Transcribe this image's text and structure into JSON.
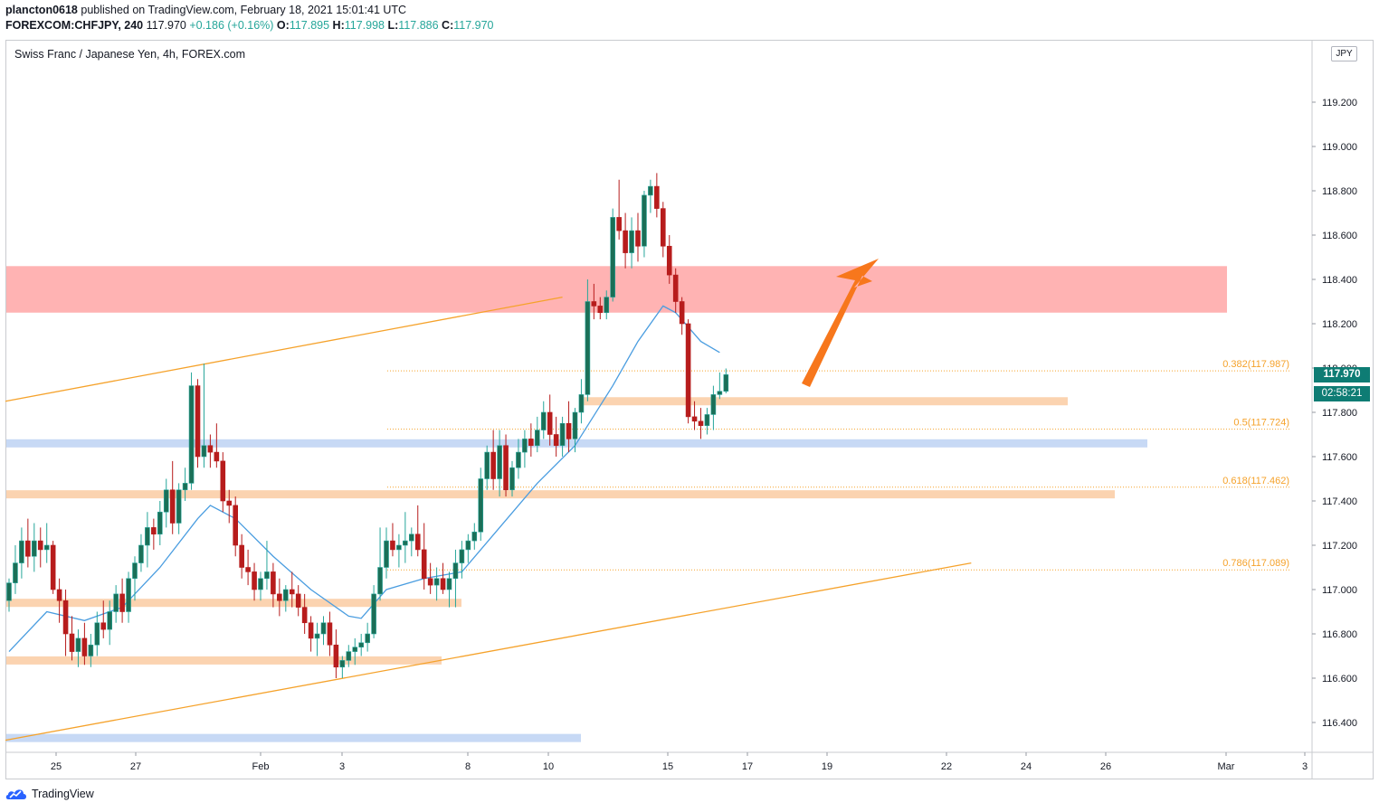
{
  "header": {
    "user": "plancton0618",
    "published_text": " published on TradingView.com, February 18, 2021 15:01:41 UTC",
    "symbol": "FOREXCOM:CHFJPY, 240",
    "last": " 117.970 ",
    "change": "+0.186 (+0.16%)",
    "o_label": " O:",
    "o_value": "117.895",
    "h_label": " H:",
    "h_value": "117.998",
    "l_label": " L:",
    "l_value": "117.886",
    "c_label": " C:",
    "c_value": "117.970"
  },
  "chart_title": "Swiss Franc / Japanese Yen, 4h, FOREX.com",
  "currency_badge": "JPY",
  "last_price_tag": "117.970",
  "countdown_tag": "02:58:21",
  "footer_brand": "TradingView",
  "colors": {
    "up": "#26a69a",
    "up_body": "#1b6f57",
    "down": "#b71c1c",
    "ma": "#4a9de0",
    "resistance_zone": "#ffb3b3",
    "support_orange": "#fbd3b0",
    "support_blue": "#c7d9f5",
    "trendline": "#f5a22b",
    "arrow": "#f7771c",
    "fib": "#f5a22b",
    "price_tag": "#0e7c74"
  },
  "chart_data": {
    "type": "candlestick",
    "symbol": "CHFJPY",
    "timeframe": "4h",
    "ylim": [
      116.28,
      119.55
    ],
    "y_ticks": [
      "116.400",
      "116.600",
      "116.800",
      "117.000",
      "117.200",
      "117.400",
      "117.600",
      "117.800",
      "118.000",
      "118.200",
      "118.400",
      "118.600",
      "118.800",
      "119.000",
      "119.200"
    ],
    "x_ticks": [
      "25",
      "27",
      "Feb",
      "3",
      "8",
      "10",
      "15",
      "17",
      "19",
      "22",
      "24",
      "26",
      "Mar",
      "3"
    ],
    "fib_levels": [
      {
        "label": "0.382(117.987)",
        "value": 117.987
      },
      {
        "label": "0.5(117.724)",
        "value": 117.724
      },
      {
        "label": "0.618(117.462)",
        "value": 117.462
      },
      {
        "label": "0.786(117.089)",
        "value": 117.089
      }
    ],
    "zones": [
      {
        "kind": "resistance",
        "from": 118.25,
        "to": 118.46
      },
      {
        "kind": "support",
        "level": 117.85
      },
      {
        "kind": "support",
        "level": 117.66
      },
      {
        "kind": "support",
        "level": 117.43
      },
      {
        "kind": "support",
        "level": 116.94
      },
      {
        "kind": "support",
        "level": 116.68
      },
      {
        "kind": "support",
        "level": 116.33
      }
    ],
    "ohlc": [
      [
        116.95,
        117.05,
        116.9,
        117.03
      ],
      [
        117.03,
        117.2,
        116.98,
        117.12
      ],
      [
        117.12,
        117.28,
        117.05,
        117.22
      ],
      [
        117.22,
        117.32,
        117.1,
        117.15
      ],
      [
        117.15,
        117.3,
        117.08,
        117.22
      ],
      [
        117.22,
        117.28,
        117.1,
        117.18
      ],
      [
        117.18,
        117.3,
        117.12,
        117.2
      ],
      [
        117.2,
        117.22,
        116.98,
        117.0
      ],
      [
        117.0,
        117.05,
        116.85,
        116.95
      ],
      [
        116.95,
        117.0,
        116.7,
        116.8
      ],
      [
        116.8,
        116.88,
        116.68,
        116.72
      ],
      [
        116.72,
        116.82,
        116.65,
        116.78
      ],
      [
        116.78,
        116.85,
        116.66,
        116.7
      ],
      [
        116.7,
        116.8,
        116.65,
        116.75
      ],
      [
        116.75,
        116.9,
        116.7,
        116.85
      ],
      [
        116.85,
        116.95,
        116.78,
        116.82
      ],
      [
        116.82,
        116.95,
        116.75,
        116.9
      ],
      [
        116.9,
        117.02,
        116.85,
        116.98
      ],
      [
        116.98,
        117.05,
        116.85,
        116.9
      ],
      [
        116.9,
        117.08,
        116.85,
        117.05
      ],
      [
        117.05,
        117.15,
        116.95,
        117.12
      ],
      [
        117.12,
        117.25,
        117.08,
        117.2
      ],
      [
        117.2,
        117.35,
        117.1,
        117.28
      ],
      [
        117.28,
        117.32,
        117.18,
        117.25
      ],
      [
        117.25,
        117.4,
        117.2,
        117.35
      ],
      [
        117.35,
        117.5,
        117.28,
        117.45
      ],
      [
        117.45,
        117.58,
        117.25,
        117.3
      ],
      [
        117.3,
        117.48,
        117.25,
        117.45
      ],
      [
        117.45,
        117.55,
        117.4,
        117.48
      ],
      [
        117.48,
        117.98,
        117.45,
        117.92
      ],
      [
        117.92,
        117.95,
        117.55,
        117.6
      ],
      [
        117.6,
        118.02,
        117.55,
        117.65
      ],
      [
        117.65,
        117.7,
        117.55,
        117.62
      ],
      [
        117.62,
        117.75,
        117.55,
        117.58
      ],
      [
        117.58,
        117.62,
        117.35,
        117.4
      ],
      [
        117.4,
        117.45,
        117.3,
        117.38
      ],
      [
        117.38,
        117.42,
        117.15,
        117.2
      ],
      [
        117.2,
        117.25,
        117.05,
        117.1
      ],
      [
        117.1,
        117.18,
        117.02,
        117.08
      ],
      [
        117.08,
        117.12,
        116.95,
        117.0
      ],
      [
        117.0,
        117.08,
        116.95,
        117.05
      ],
      [
        117.05,
        117.22,
        117.0,
        117.08
      ],
      [
        117.08,
        117.12,
        116.92,
        116.98
      ],
      [
        116.98,
        117.05,
        116.88,
        116.95
      ],
      [
        116.95,
        117.02,
        116.9,
        117.0
      ],
      [
        117.0,
        117.08,
        116.92,
        116.98
      ],
      [
        116.98,
        117.02,
        116.88,
        116.92
      ],
      [
        116.92,
        116.98,
        116.8,
        116.85
      ],
      [
        116.85,
        116.88,
        116.72,
        116.78
      ],
      [
        116.78,
        116.85,
        116.7,
        116.8
      ],
      [
        116.8,
        116.88,
        116.75,
        116.85
      ],
      [
        116.85,
        116.9,
        116.7,
        116.75
      ],
      [
        116.75,
        116.82,
        116.6,
        116.65
      ],
      [
        116.65,
        116.7,
        116.6,
        116.68
      ],
      [
        116.68,
        116.75,
        116.65,
        116.72
      ],
      [
        116.72,
        116.78,
        116.66,
        116.74
      ],
      [
        116.74,
        116.8,
        116.7,
        116.76
      ],
      [
        116.76,
        116.85,
        116.72,
        116.8
      ],
      [
        116.8,
        117.02,
        116.78,
        116.98
      ],
      [
        116.98,
        117.28,
        116.95,
        117.1
      ],
      [
        117.1,
        117.28,
        117.05,
        117.22
      ],
      [
        117.22,
        117.3,
        117.15,
        117.18
      ],
      [
        117.18,
        117.25,
        117.1,
        117.2
      ],
      [
        117.2,
        117.35,
        117.12,
        117.22
      ],
      [
        117.22,
        117.28,
        117.15,
        117.25
      ],
      [
        117.25,
        117.38,
        117.15,
        117.18
      ],
      [
        117.18,
        117.3,
        117.0,
        117.05
      ],
      [
        117.05,
        117.12,
        116.98,
        117.02
      ],
      [
        117.02,
        117.1,
        116.95,
        117.05
      ],
      [
        117.05,
        117.12,
        116.98,
        117.0
      ],
      [
        117.0,
        117.08,
        116.92,
        117.05
      ],
      [
        117.05,
        117.18,
        116.92,
        117.12
      ],
      [
        117.12,
        117.22,
        117.05,
        117.18
      ],
      [
        117.18,
        117.25,
        117.12,
        117.22
      ],
      [
        117.22,
        117.3,
        117.18,
        117.26
      ],
      [
        117.26,
        117.55,
        117.22,
        117.5
      ],
      [
        117.5,
        117.65,
        117.45,
        117.62
      ],
      [
        117.62,
        117.72,
        117.45,
        117.5
      ],
      [
        117.5,
        117.72,
        117.42,
        117.65
      ],
      [
        117.65,
        117.7,
        117.42,
        117.45
      ],
      [
        117.45,
        117.58,
        117.42,
        117.55
      ],
      [
        117.55,
        117.68,
        117.5,
        117.62
      ],
      [
        117.62,
        117.72,
        117.55,
        117.68
      ],
      [
        117.68,
        117.75,
        117.6,
        117.65
      ],
      [
        117.65,
        117.78,
        117.62,
        117.72
      ],
      [
        117.72,
        117.85,
        117.68,
        117.8
      ],
      [
        117.8,
        117.88,
        117.65,
        117.7
      ],
      [
        117.7,
        117.78,
        117.6,
        117.65
      ],
      [
        117.65,
        117.78,
        117.6,
        117.75
      ],
      [
        117.75,
        117.85,
        117.62,
        117.68
      ],
      [
        117.68,
        117.82,
        117.62,
        117.8
      ],
      [
        117.8,
        117.95,
        117.75,
        117.88
      ],
      [
        117.88,
        118.4,
        117.85,
        118.3
      ],
      [
        118.3,
        118.38,
        118.22,
        118.28
      ],
      [
        118.28,
        118.32,
        118.22,
        118.25
      ],
      [
        118.25,
        118.35,
        118.22,
        118.32
      ],
      [
        118.32,
        118.72,
        118.3,
        118.68
      ],
      [
        118.68,
        118.85,
        118.58,
        118.62
      ],
      [
        118.62,
        118.7,
        118.45,
        118.52
      ],
      [
        118.52,
        118.68,
        118.45,
        118.62
      ],
      [
        118.62,
        118.7,
        118.48,
        118.55
      ],
      [
        118.55,
        118.8,
        118.5,
        118.78
      ],
      [
        118.78,
        118.85,
        118.7,
        118.82
      ],
      [
        118.82,
        118.88,
        118.68,
        118.72
      ],
      [
        118.72,
        118.75,
        118.5,
        118.55
      ],
      [
        118.55,
        118.6,
        118.38,
        118.42
      ],
      [
        118.42,
        118.45,
        118.25,
        118.3
      ],
      [
        118.3,
        118.32,
        118.15,
        118.2
      ],
      [
        118.2,
        118.22,
        117.75,
        117.78
      ],
      [
        117.78,
        117.85,
        117.72,
        117.76
      ],
      [
        117.76,
        117.82,
        117.68,
        117.74
      ],
      [
        117.74,
        117.82,
        117.7,
        117.79
      ],
      [
        117.79,
        117.92,
        117.72,
        117.88
      ],
      [
        117.88,
        117.98,
        117.86,
        117.895
      ],
      [
        117.895,
        117.998,
        117.886,
        117.97
      ]
    ],
    "ma": [
      [
        0,
        116.72
      ],
      [
        6,
        116.9
      ],
      [
        12,
        116.86
      ],
      [
        18,
        116.92
      ],
      [
        24,
        117.1
      ],
      [
        30,
        117.32
      ],
      [
        32,
        117.38
      ],
      [
        36,
        117.32
      ],
      [
        42,
        117.15
      ],
      [
        48,
        117.0
      ],
      [
        54,
        116.88
      ],
      [
        56,
        116.87
      ],
      [
        60,
        117.0
      ],
      [
        66,
        117.05
      ],
      [
        72,
        117.08
      ],
      [
        78,
        117.28
      ],
      [
        84,
        117.48
      ],
      [
        90,
        117.65
      ],
      [
        96,
        117.92
      ],
      [
        100,
        118.12
      ],
      [
        104,
        118.28
      ],
      [
        106,
        118.25
      ],
      [
        110,
        118.12
      ],
      [
        113,
        118.07
      ]
    ],
    "trendlines": [
      {
        "x1": 0,
        "y1": 117.85,
        "x2": 88,
        "y2": 118.32
      },
      {
        "x1": 0,
        "y1": 116.32,
        "x2": 153,
        "y2": 117.12
      }
    ]
  }
}
